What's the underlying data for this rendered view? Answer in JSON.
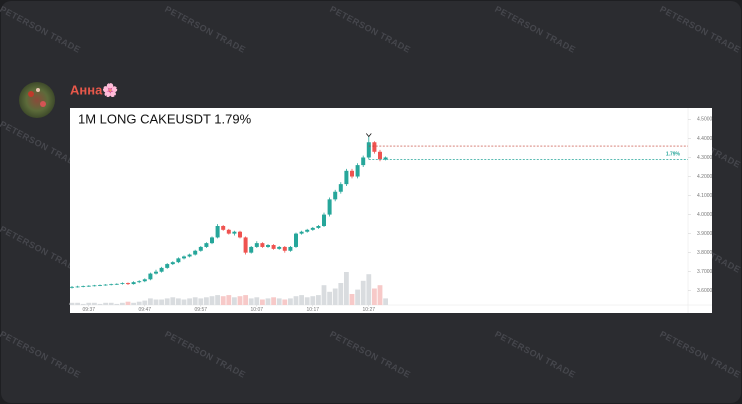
{
  "message": {
    "author": "Анна🌸",
    "watermark": "PETERSON TRADE"
  },
  "chart_data": {
    "type": "candlestick",
    "title": "1M LONG CAKEUSDT 1.79%",
    "candles": [
      [
        3.618,
        3.625,
        3.612,
        3.62
      ],
      [
        3.62,
        3.626,
        3.616,
        3.622
      ],
      [
        3.622,
        3.627,
        3.618,
        3.624
      ],
      [
        3.624,
        3.629,
        3.62,
        3.626
      ],
      [
        3.626,
        3.631,
        3.622,
        3.628
      ],
      [
        3.628,
        3.633,
        3.624,
        3.63
      ],
      [
        3.63,
        3.635,
        3.626,
        3.632
      ],
      [
        3.632,
        3.637,
        3.628,
        3.634
      ],
      [
        3.634,
        3.639,
        3.63,
        3.636
      ],
      [
        3.636,
        3.644,
        3.632,
        3.64
      ],
      [
        3.64,
        3.643,
        3.63,
        3.635
      ],
      [
        3.635,
        3.65,
        3.632,
        3.645
      ],
      [
        3.645,
        3.655,
        3.64,
        3.65
      ],
      [
        3.65,
        3.665,
        3.645,
        3.66
      ],
      [
        3.66,
        3.695,
        3.655,
        3.69
      ],
      [
        3.69,
        3.71,
        3.685,
        3.7
      ],
      [
        3.7,
        3.725,
        3.695,
        3.72
      ],
      [
        3.72,
        3.745,
        3.715,
        3.74
      ],
      [
        3.74,
        3.755,
        3.735,
        3.75
      ],
      [
        3.75,
        3.775,
        3.745,
        3.77
      ],
      [
        3.77,
        3.785,
        3.765,
        3.78
      ],
      [
        3.78,
        3.795,
        3.775,
        3.79
      ],
      [
        3.79,
        3.815,
        3.785,
        3.81
      ],
      [
        3.81,
        3.835,
        3.805,
        3.83
      ],
      [
        3.83,
        3.855,
        3.825,
        3.85
      ],
      [
        3.85,
        3.885,
        3.845,
        3.88
      ],
      [
        3.88,
        3.95,
        3.875,
        3.94
      ],
      [
        3.94,
        3.945,
        3.915,
        3.92
      ],
      [
        3.92,
        3.925,
        3.895,
        3.9
      ],
      [
        3.9,
        3.915,
        3.89,
        3.91
      ],
      [
        3.91,
        3.915,
        3.875,
        3.88
      ],
      [
        3.88,
        3.885,
        3.79,
        3.8
      ],
      [
        3.8,
        3.835,
        3.795,
        3.83
      ],
      [
        3.83,
        3.86,
        3.825,
        3.85
      ],
      [
        3.85,
        3.855,
        3.825,
        3.83
      ],
      [
        3.83,
        3.845,
        3.825,
        3.84
      ],
      [
        3.84,
        3.845,
        3.815,
        3.82
      ],
      [
        3.82,
        3.835,
        3.815,
        3.83
      ],
      [
        3.83,
        3.835,
        3.8,
        3.81
      ],
      [
        3.81,
        3.835,
        3.805,
        3.83
      ],
      [
        3.83,
        3.905,
        3.825,
        3.9
      ],
      [
        3.9,
        3.915,
        3.895,
        3.91
      ],
      [
        3.91,
        3.925,
        3.905,
        3.92
      ],
      [
        3.92,
        3.935,
        3.915,
        3.93
      ],
      [
        3.93,
        3.945,
        3.925,
        3.94
      ],
      [
        3.94,
        4.01,
        3.935,
        4.0
      ],
      [
        4.0,
        4.09,
        3.99,
        4.08
      ],
      [
        4.08,
        4.13,
        4.07,
        4.12
      ],
      [
        4.12,
        4.17,
        4.11,
        4.16
      ],
      [
        4.16,
        4.24,
        4.15,
        4.23
      ],
      [
        4.23,
        4.24,
        4.19,
        4.2
      ],
      [
        4.2,
        4.27,
        4.19,
        4.26
      ],
      [
        4.26,
        4.31,
        4.25,
        4.3
      ],
      [
        4.3,
        4.41,
        4.29,
        4.38
      ],
      [
        4.38,
        4.385,
        4.32,
        4.33
      ],
      [
        4.33,
        4.34,
        4.28,
        4.29
      ],
      [
        4.29,
        4.305,
        4.285,
        4.3
      ]
    ],
    "volume": [
      2,
      2,
      1,
      2,
      2,
      1,
      2,
      2,
      1,
      2,
      3,
      2,
      3,
      4,
      6,
      5,
      5,
      6,
      7,
      6,
      5,
      6,
      7,
      6,
      7,
      8,
      9,
      8,
      9,
      7,
      8,
      9,
      6,
      7,
      5,
      6,
      7,
      6,
      5,
      6,
      8,
      9,
      7,
      8,
      9,
      18,
      12,
      15,
      20,
      30,
      10,
      14,
      22,
      28,
      15,
      18,
      6
    ],
    "up_color": "#26a69a",
    "down_color": "#ef5350",
    "ylim": [
      3.525,
      4.56
    ],
    "yticks": [
      {
        "value": 4.5,
        "label": "4.5000"
      },
      {
        "value": 4.4,
        "label": "4.4000"
      },
      {
        "value": 4.3,
        "label": "4.3000"
      },
      {
        "value": 4.2,
        "label": "4.2000"
      },
      {
        "value": 4.1,
        "label": "4.1000"
      },
      {
        "value": 4.0,
        "label": "4.0000"
      },
      {
        "value": 3.9,
        "label": "3.9000"
      },
      {
        "value": 3.8,
        "label": "3.8000"
      },
      {
        "value": 3.7,
        "label": "3.7000"
      },
      {
        "value": 3.6,
        "label": "3.6000"
      }
    ],
    "xticks": [
      {
        "value": 3,
        "label": "09:37"
      },
      {
        "value": 13,
        "label": "09:47"
      },
      {
        "value": 23,
        "label": "09:57"
      },
      {
        "value": 33,
        "label": "10:07"
      },
      {
        "value": 43,
        "label": "10:17"
      },
      {
        "value": 53,
        "label": "10:27"
      }
    ],
    "levels": [
      {
        "value": 4.36,
        "color": "#c0392b"
      },
      {
        "value": 4.29,
        "color": "#26a69a",
        "label": "1.79%"
      }
    ]
  }
}
